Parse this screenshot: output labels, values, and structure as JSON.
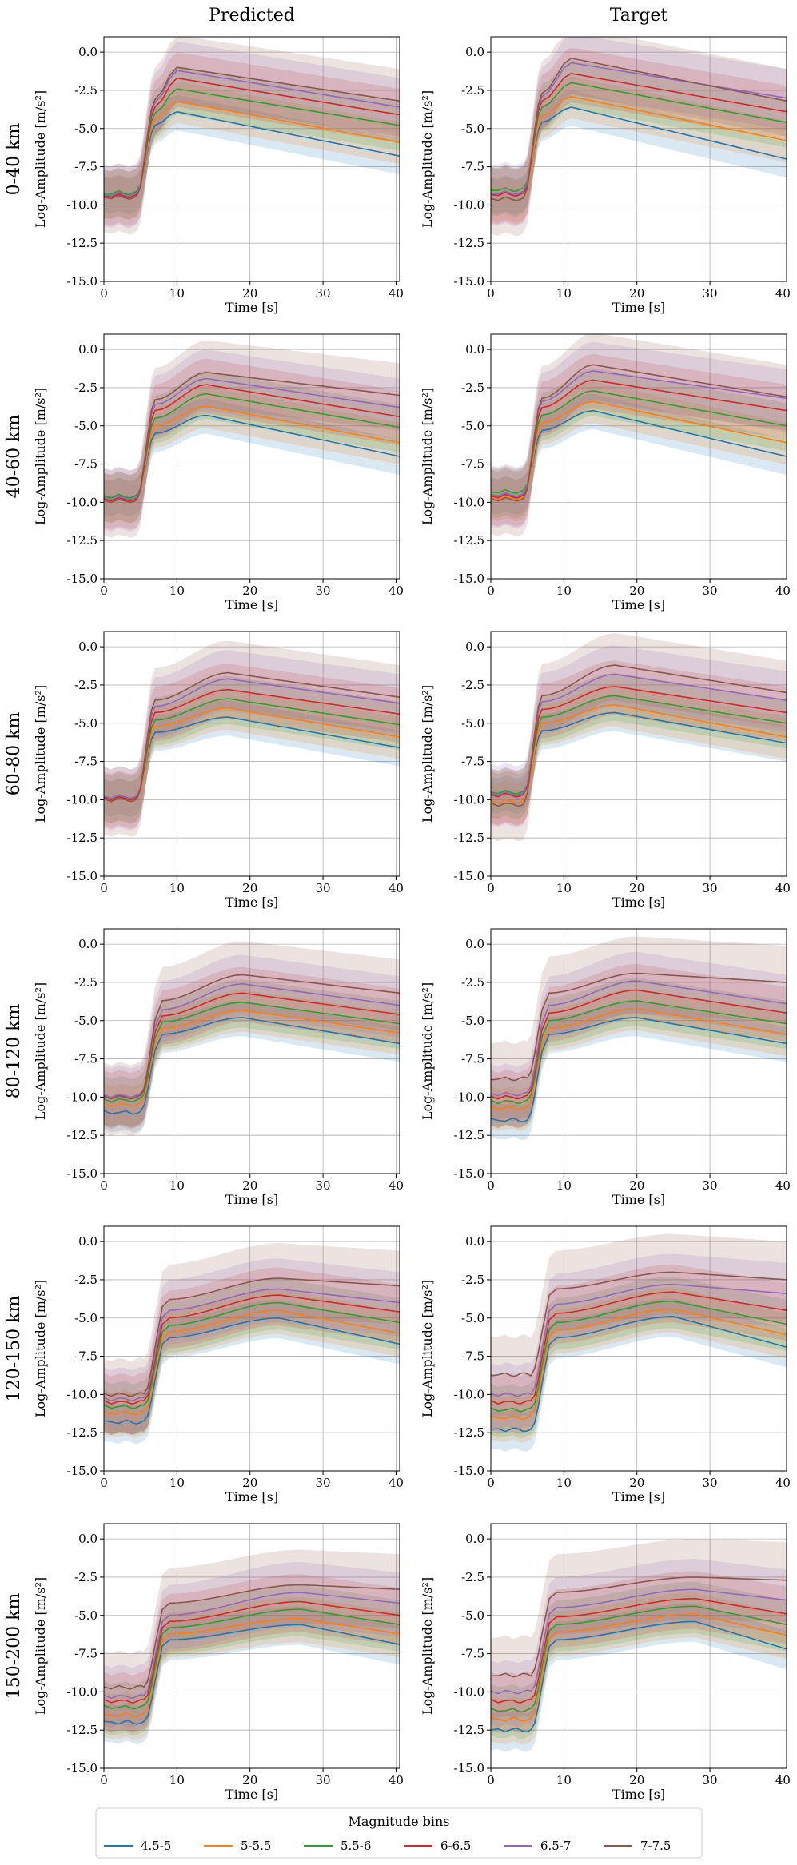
{
  "figure": {
    "column_titles": [
      "Predicted",
      "Target"
    ],
    "row_labels": [
      "0-40 km",
      "40-60 km",
      "60-80 km",
      "80-120 km",
      "120-150 km",
      "150-200 km"
    ]
  },
  "legend": {
    "title": "Magnitude bins",
    "entries": [
      {
        "label": "4.5-5",
        "color": "#1f77b4"
      },
      {
        "label": "5-5.5",
        "color": "#ff7f0e"
      },
      {
        "label": "5.5-6",
        "color": "#2ca02c"
      },
      {
        "label": "6-6.5",
        "color": "#d62728"
      },
      {
        "label": "6.5-7",
        "color": "#9467bd"
      },
      {
        "label": "7-7.5",
        "color": "#8c564b"
      }
    ]
  },
  "chart_data": {
    "type": "line",
    "layout": "grid 6 rows x 2 columns",
    "xlabel": "Time [s]",
    "ylabel": "Log-Amplitude [m/s²]",
    "xlim": [
      0,
      40.5
    ],
    "ylim": [
      -15,
      1
    ],
    "xticks": [
      "0",
      "10",
      "20",
      "30",
      "40"
    ],
    "yticks": [
      "0.0",
      "-2.5",
      "-5.0",
      "-7.5",
      "-10.0",
      "-12.5",
      "-15.0"
    ],
    "grid": true,
    "legend_position": "bottom-center",
    "shaded_band": "uncertainty spread around each series",
    "x": [
      0,
      1,
      2,
      3,
      3.5,
      4,
      4.5,
      5,
      5.5,
      6,
      6.5,
      7,
      8,
      9,
      10,
      11,
      12,
      13,
      14,
      15,
      16,
      17,
      18,
      19,
      20,
      21,
      22,
      23,
      24,
      25,
      26,
      27,
      28,
      29,
      30,
      32,
      34,
      36,
      38,
      40,
      40.5
    ],
    "panels": [
      {
        "row": "0-40 km",
        "column": "Predicted",
        "onset": 4.5,
        "rise": 2.5,
        "peak_time": 10,
        "band": [
          1.1,
          1.3,
          1.5,
          1.7,
          1.9,
          2.1
        ],
        "series": [
          {
            "name": "4.5-5",
            "pre": -9.3,
            "plateau": -4.8,
            "peak": -3.9,
            "end": -6.8
          },
          {
            "name": "5-5.5",
            "pre": -9.4,
            "plateau": -4.4,
            "peak": -3.2,
            "end": -5.9
          },
          {
            "name": "5.5-6",
            "pre": -9.2,
            "plateau": -4.0,
            "peak": -2.4,
            "end": -4.8
          },
          {
            "name": "6-6.5",
            "pre": -9.4,
            "plateau": -3.6,
            "peak": -1.7,
            "end": -4.1
          },
          {
            "name": "6.5-7",
            "pre": -9.3,
            "plateau": -3.3,
            "peak": -1.2,
            "end": -3.6
          },
          {
            "name": "7-7.5",
            "pre": -9.5,
            "plateau": -3.1,
            "peak": -1.0,
            "end": -3.2
          }
        ]
      },
      {
        "row": "0-40 km",
        "column": "Target",
        "onset": 4.5,
        "rise": 2.5,
        "peak_time": 11,
        "band": [
          1.1,
          1.3,
          1.5,
          1.7,
          1.9,
          2.1
        ],
        "series": [
          {
            "name": "4.5-5",
            "pre": -9.3,
            "plateau": -4.6,
            "peak": -3.6,
            "end": -7.0
          },
          {
            "name": "5-5.5",
            "pre": -9.6,
            "plateau": -4.2,
            "peak": -2.9,
            "end": -5.8
          },
          {
            "name": "5.5-6",
            "pre": -9.0,
            "plateau": -3.6,
            "peak": -2.0,
            "end": -4.6
          },
          {
            "name": "6-6.5",
            "pre": -9.3,
            "plateau": -3.2,
            "peak": -1.4,
            "end": -3.9
          },
          {
            "name": "6.5-7",
            "pre": -9.2,
            "plateau": -2.9,
            "peak": -0.7,
            "end": -3.0
          },
          {
            "name": "7-7.5",
            "pre": -9.6,
            "plateau": -2.7,
            "peak": -0.4,
            "end": -3.2
          }
        ]
      },
      {
        "row": "40-60 km",
        "column": "Predicted",
        "onset": 4.5,
        "rise": 2.5,
        "peak_time": 14,
        "band": [
          1.1,
          1.3,
          1.5,
          1.7,
          1.9,
          2.1
        ],
        "series": [
          {
            "name": "4.5-5",
            "pre": -9.6,
            "plateau": -5.5,
            "peak": -4.3,
            "end": -7.0
          },
          {
            "name": "5-5.5",
            "pre": -9.8,
            "plateau": -5.0,
            "peak": -3.7,
            "end": -6.1
          },
          {
            "name": "5.5-6",
            "pre": -9.6,
            "plateau": -4.5,
            "peak": -2.9,
            "end": -5.1
          },
          {
            "name": "6-6.5",
            "pre": -9.8,
            "plateau": -4.0,
            "peak": -2.3,
            "end": -4.4
          },
          {
            "name": "6.5-7",
            "pre": -9.7,
            "plateau": -3.6,
            "peak": -1.9,
            "end": -3.8
          },
          {
            "name": "7-7.5",
            "pre": -9.9,
            "plateau": -3.3,
            "peak": -1.5,
            "end": -3.0
          }
        ]
      },
      {
        "row": "40-60 km",
        "column": "Target",
        "onset": 4.5,
        "rise": 2.5,
        "peak_time": 14,
        "band": [
          1.1,
          1.3,
          1.5,
          1.7,
          1.9,
          2.1
        ],
        "series": [
          {
            "name": "4.5-5",
            "pre": -9.5,
            "plateau": -5.3,
            "peak": -4.0,
            "end": -7.0
          },
          {
            "name": "5-5.5",
            "pre": -9.7,
            "plateau": -4.8,
            "peak": -3.4,
            "end": -6.1
          },
          {
            "name": "5.5-6",
            "pre": -9.3,
            "plateau": -4.3,
            "peak": -2.7,
            "end": -5.0
          },
          {
            "name": "6-6.5",
            "pre": -9.6,
            "plateau": -3.8,
            "peak": -2.0,
            "end": -4.0
          },
          {
            "name": "6.5-7",
            "pre": -9.5,
            "plateau": -3.4,
            "peak": -1.4,
            "end": -3.2
          },
          {
            "name": "7-7.5",
            "pre": -9.8,
            "plateau": -3.2,
            "peak": -1.0,
            "end": -3.1
          }
        ]
      },
      {
        "row": "60-80 km",
        "column": "Predicted",
        "onset": 4.5,
        "rise": 2.5,
        "peak_time": 17,
        "band": [
          1.1,
          1.3,
          1.5,
          1.7,
          1.9,
          2.1
        ],
        "series": [
          {
            "name": "4.5-5",
            "pre": -9.8,
            "plateau": -5.6,
            "peak": -4.6,
            "end": -6.6
          },
          {
            "name": "5-5.5",
            "pre": -10.0,
            "plateau": -5.2,
            "peak": -4.0,
            "end": -5.9
          },
          {
            "name": "5.5-6",
            "pre": -9.8,
            "plateau": -4.8,
            "peak": -3.4,
            "end": -5.1
          },
          {
            "name": "6-6.5",
            "pre": -9.9,
            "plateau": -4.3,
            "peak": -2.8,
            "end": -4.4
          },
          {
            "name": "6.5-7",
            "pre": -9.8,
            "plateau": -3.9,
            "peak": -2.1,
            "end": -3.7
          },
          {
            "name": "7-7.5",
            "pre": -10.0,
            "plateau": -3.5,
            "peak": -1.7,
            "end": -3.3
          }
        ]
      },
      {
        "row": "60-80 km",
        "column": "Target",
        "onset": 4.5,
        "rise": 2.5,
        "peak_time": 17,
        "band": [
          1.1,
          1.3,
          1.5,
          1.7,
          1.9,
          2.1
        ],
        "series": [
          {
            "name": "4.5-5",
            "pre": -9.6,
            "plateau": -5.5,
            "peak": -4.3,
            "end": -6.3
          },
          {
            "name": "5-5.5",
            "pre": -10.1,
            "plateau": -5.0,
            "peak": -3.8,
            "end": -5.9
          },
          {
            "name": "5.5-6",
            "pre": -9.5,
            "plateau": -4.6,
            "peak": -3.2,
            "end": -5.0
          },
          {
            "name": "6-6.5",
            "pre": -9.7,
            "plateau": -4.1,
            "peak": -2.6,
            "end": -4.3
          },
          {
            "name": "6.5-7",
            "pre": -9.6,
            "plateau": -3.6,
            "peak": -1.8,
            "end": -3.5
          },
          {
            "name": "7-7.5",
            "pre": -10.3,
            "plateau": -3.2,
            "peak": -1.2,
            "end": -3.0
          }
        ]
      },
      {
        "row": "80-120 km",
        "column": "Predicted",
        "onset": 5.0,
        "rise": 2.8,
        "peak_time": 19,
        "band": [
          1.1,
          1.3,
          1.5,
          1.7,
          1.9,
          2.2
        ],
        "series": [
          {
            "name": "4.5-5",
            "pre": -11.0,
            "plateau": -5.9,
            "peak": -4.8,
            "end": -6.5
          },
          {
            "name": "5-5.5",
            "pre": -10.5,
            "plateau": -5.5,
            "peak": -4.3,
            "end": -5.8
          },
          {
            "name": "5.5-6",
            "pre": -10.2,
            "plateau": -5.1,
            "peak": -3.8,
            "end": -5.2
          },
          {
            "name": "6-6.5",
            "pre": -10.0,
            "plateau": -4.7,
            "peak": -3.2,
            "end": -4.6
          },
          {
            "name": "6.5-7",
            "pre": -9.9,
            "plateau": -4.3,
            "peak": -2.6,
            "end": -4.0
          },
          {
            "name": "7-7.5",
            "pre": -10.0,
            "plateau": -3.7,
            "peak": -2.0,
            "end": -3.2
          }
        ]
      },
      {
        "row": "80-120 km",
        "column": "Target",
        "onset": 5.0,
        "rise": 2.8,
        "peak_time": 20,
        "band": [
          1.1,
          1.3,
          1.5,
          1.7,
          1.9,
          2.4
        ],
        "series": [
          {
            "name": "4.5-5",
            "pre": -11.5,
            "plateau": -5.9,
            "peak": -4.8,
            "end": -6.5
          },
          {
            "name": "5-5.5",
            "pre": -10.7,
            "plateau": -5.5,
            "peak": -4.2,
            "end": -5.9
          },
          {
            "name": "5.5-6",
            "pre": -10.3,
            "plateau": -5.0,
            "peak": -3.7,
            "end": -5.2
          },
          {
            "name": "6-6.5",
            "pre": -10.0,
            "plateau": -4.5,
            "peak": -3.0,
            "end": -4.5
          },
          {
            "name": "6.5-7",
            "pre": -9.8,
            "plateau": -4.0,
            "peak": -2.4,
            "end": -3.9
          },
          {
            "name": "7-7.5",
            "pre": -8.8,
            "plateau": -3.2,
            "peak": -1.9,
            "end": -2.5
          }
        ]
      },
      {
        "row": "120-150 km",
        "column": "Predicted",
        "onset": 5.5,
        "rise": 3.0,
        "peak_time": 24,
        "band": [
          1.2,
          1.4,
          1.6,
          1.8,
          2.0,
          2.3
        ],
        "series": [
          {
            "name": "4.5-5",
            "pre": -11.8,
            "plateau": -6.3,
            "peak": -5.0,
            "end": -6.7
          },
          {
            "name": "5-5.5",
            "pre": -11.2,
            "plateau": -5.9,
            "peak": -4.5,
            "end": -6.0
          },
          {
            "name": "5.5-6",
            "pre": -10.8,
            "plateau": -5.5,
            "peak": -4.0,
            "end": -5.3
          },
          {
            "name": "6-6.5",
            "pre": -10.5,
            "plateau": -5.0,
            "peak": -3.5,
            "end": -4.6
          },
          {
            "name": "6.5-7",
            "pre": -10.3,
            "plateau": -4.5,
            "peak": -3.1,
            "end": -4.0
          },
          {
            "name": "7-7.5",
            "pre": -10.0,
            "plateau": -3.8,
            "peak": -2.4,
            "end": -2.9
          }
        ]
      },
      {
        "row": "120-150 km",
        "column": "Target",
        "onset": 5.5,
        "rise": 3.0,
        "peak_time": 25,
        "band": [
          1.2,
          1.4,
          1.6,
          1.8,
          2.0,
          2.5
        ],
        "series": [
          {
            "name": "4.5-5",
            "pre": -12.3,
            "plateau": -6.3,
            "peak": -4.9,
            "end": -6.9
          },
          {
            "name": "5-5.5",
            "pre": -11.5,
            "plateau": -5.8,
            "peak": -4.4,
            "end": -6.1
          },
          {
            "name": "5.5-6",
            "pre": -11.0,
            "plateau": -5.3,
            "peak": -3.9,
            "end": -5.4
          },
          {
            "name": "6-6.5",
            "pre": -10.5,
            "plateau": -4.7,
            "peak": -3.3,
            "end": -4.5
          },
          {
            "name": "6.5-7",
            "pre": -10.0,
            "plateau": -4.1,
            "peak": -2.8,
            "end": -3.4
          },
          {
            "name": "7-7.5",
            "pre": -8.7,
            "plateau": -3.1,
            "peak": -2.0,
            "end": -2.5
          }
        ]
      },
      {
        "row": "150-200 km",
        "column": "Predicted",
        "onset": 5.5,
        "rise": 3.0,
        "peak_time": 27,
        "band": [
          1.2,
          1.4,
          1.6,
          1.8,
          2.0,
          2.3
        ],
        "series": [
          {
            "name": "4.5-5",
            "pre": -12.0,
            "plateau": -6.6,
            "peak": -5.6,
            "end": -6.9
          },
          {
            "name": "5-5.5",
            "pre": -11.5,
            "plateau": -6.2,
            "peak": -5.2,
            "end": -6.2
          },
          {
            "name": "5.5-6",
            "pre": -11.0,
            "plateau": -5.8,
            "peak": -4.6,
            "end": -5.6
          },
          {
            "name": "6-6.5",
            "pre": -10.6,
            "plateau": -5.4,
            "peak": -4.1,
            "end": -5.0
          },
          {
            "name": "6.5-7",
            "pre": -10.3,
            "plateau": -5.0,
            "peak": -3.5,
            "end": -4.2
          },
          {
            "name": "7-7.5",
            "pre": -9.7,
            "plateau": -4.2,
            "peak": -3.0,
            "end": -3.3
          }
        ]
      },
      {
        "row": "150-200 km",
        "column": "Target",
        "onset": 5.5,
        "rise": 3.0,
        "peak_time": 28,
        "band": [
          1.2,
          1.4,
          1.6,
          1.8,
          2.0,
          2.5
        ],
        "series": [
          {
            "name": "4.5-5",
            "pre": -12.5,
            "plateau": -6.6,
            "peak": -5.4,
            "end": -7.2
          },
          {
            "name": "5-5.5",
            "pre": -11.8,
            "plateau": -6.1,
            "peak": -4.9,
            "end": -6.3
          },
          {
            "name": "5.5-6",
            "pre": -11.2,
            "plateau": -5.6,
            "peak": -4.4,
            "end": -5.6
          },
          {
            "name": "6-6.5",
            "pre": -10.6,
            "plateau": -5.1,
            "peak": -3.9,
            "end": -4.9
          },
          {
            "name": "6.5-7",
            "pre": -10.0,
            "plateau": -4.5,
            "peak": -3.3,
            "end": -4.0
          },
          {
            "name": "7-7.5",
            "pre": -8.9,
            "plateau": -3.5,
            "peak": -2.5,
            "end": -2.7
          }
        ]
      }
    ]
  }
}
